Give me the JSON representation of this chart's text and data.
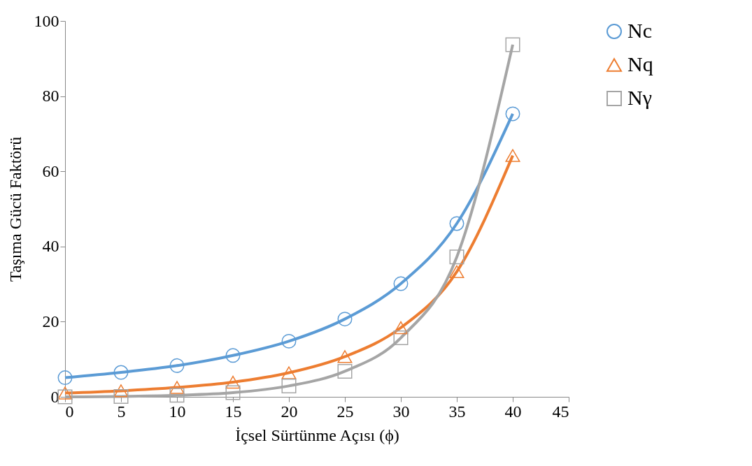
{
  "chart_data": {
    "type": "line",
    "xlabel": "İçsel Sürtünme Açısı (ϕ)",
    "ylabel": "Taşıma Gücü Faktörü",
    "x": [
      0,
      5,
      10,
      15,
      20,
      25,
      30,
      35,
      40
    ],
    "series": [
      {
        "name": "Nc",
        "color": "#5b9bd5",
        "marker": "circle",
        "values": [
          5.1,
          6.5,
          8.3,
          11.0,
          14.8,
          20.7,
          30.1,
          46.1,
          75.3
        ]
      },
      {
        "name": "Nq",
        "color": "#ed7d31",
        "marker": "triangle",
        "values": [
          1.0,
          1.6,
          2.5,
          3.9,
          6.4,
          10.7,
          18.4,
          33.3,
          64.2
        ]
      },
      {
        "name": "Nγ",
        "color": "#a5a5a5",
        "marker": "square",
        "values": [
          0.0,
          0.1,
          0.4,
          1.1,
          2.9,
          6.8,
          15.7,
          37.2,
          93.7
        ]
      }
    ],
    "xlim": [
      0,
      45
    ],
    "xticks": [
      0,
      5,
      10,
      15,
      20,
      25,
      30,
      35,
      40,
      45
    ],
    "ylim": [
      0,
      100
    ],
    "yticks": [
      0,
      20,
      40,
      60,
      80,
      100
    ],
    "grid": false,
    "legend": "right"
  }
}
